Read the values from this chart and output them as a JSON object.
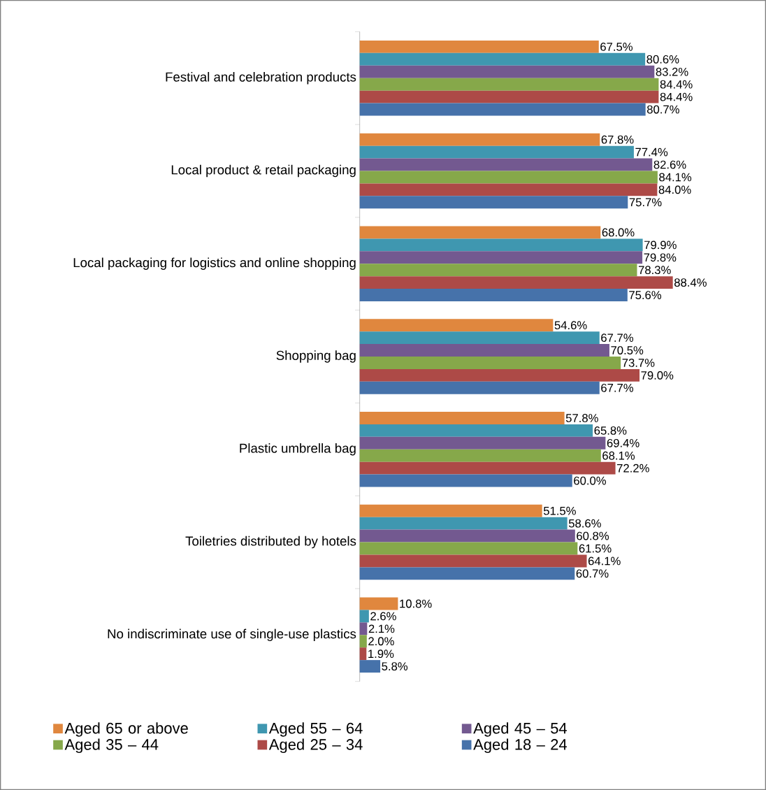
{
  "chart_data": {
    "type": "bar",
    "orientation": "horizontal",
    "legend": "bottom",
    "categories": [
      "Festival and celebration products",
      "Local product & retail packaging",
      "Local packaging for logistics and online shopping",
      "Shopping bag",
      "Plastic umbrella bag",
      "Toiletries distributed by hotels",
      "No indiscriminate use of single-use plastics"
    ],
    "series": [
      {
        "name": "Aged 65 or above",
        "color": "#e0873e",
        "values": [
          67.5,
          67.8,
          68.0,
          54.6,
          57.8,
          51.5,
          10.8
        ],
        "value_labels": [
          "67.5%",
          "67.8%",
          "68.0%",
          "54.6%",
          "57.8%",
          "51.5%",
          "10.8%"
        ]
      },
      {
        "name": "Aged 55 – 64",
        "color": "#3f97b0",
        "values": [
          80.6,
          77.4,
          79.9,
          67.7,
          65.8,
          58.6,
          2.6
        ],
        "value_labels": [
          "80.6%",
          "77.4%",
          "79.9%",
          "67.7%",
          "65.8%",
          "58.6%",
          "2.6%"
        ]
      },
      {
        "name": "Aged 45 – 54",
        "color": "#735990",
        "values": [
          83.2,
          82.6,
          79.8,
          70.5,
          69.4,
          60.8,
          2.1
        ],
        "value_labels": [
          "83.2%",
          "82.6%",
          "79.8%",
          "70.5%",
          "69.4%",
          "60.8%",
          "2.1%"
        ]
      },
      {
        "name": "Aged 35 – 44",
        "color": "#86a84a",
        "values": [
          84.4,
          84.1,
          78.3,
          73.7,
          68.1,
          61.5,
          2.0
        ],
        "value_labels": [
          "84.4%",
          "84.1%",
          "78.3%",
          "73.7%",
          "68.1%",
          "61.5%",
          "2.0%"
        ]
      },
      {
        "name": "Aged 25 – 34",
        "color": "#ad4a47",
        "values": [
          84.4,
          84.0,
          88.4,
          79.0,
          72.2,
          64.1,
          1.9
        ],
        "value_labels": [
          "84.4%",
          "84.0%",
          "88.4%",
          "79.0%",
          "72.2%",
          "64.1%",
          "1.9%"
        ]
      },
      {
        "name": "Aged 18 – 24",
        "color": "#4672aa",
        "values": [
          80.7,
          75.7,
          75.6,
          67.7,
          60.0,
          60.7,
          5.8
        ],
        "value_labels": [
          "80.7%",
          "75.7%",
          "75.6%",
          "67.7%",
          "60.0%",
          "60.7%",
          "5.8%"
        ]
      }
    ]
  }
}
